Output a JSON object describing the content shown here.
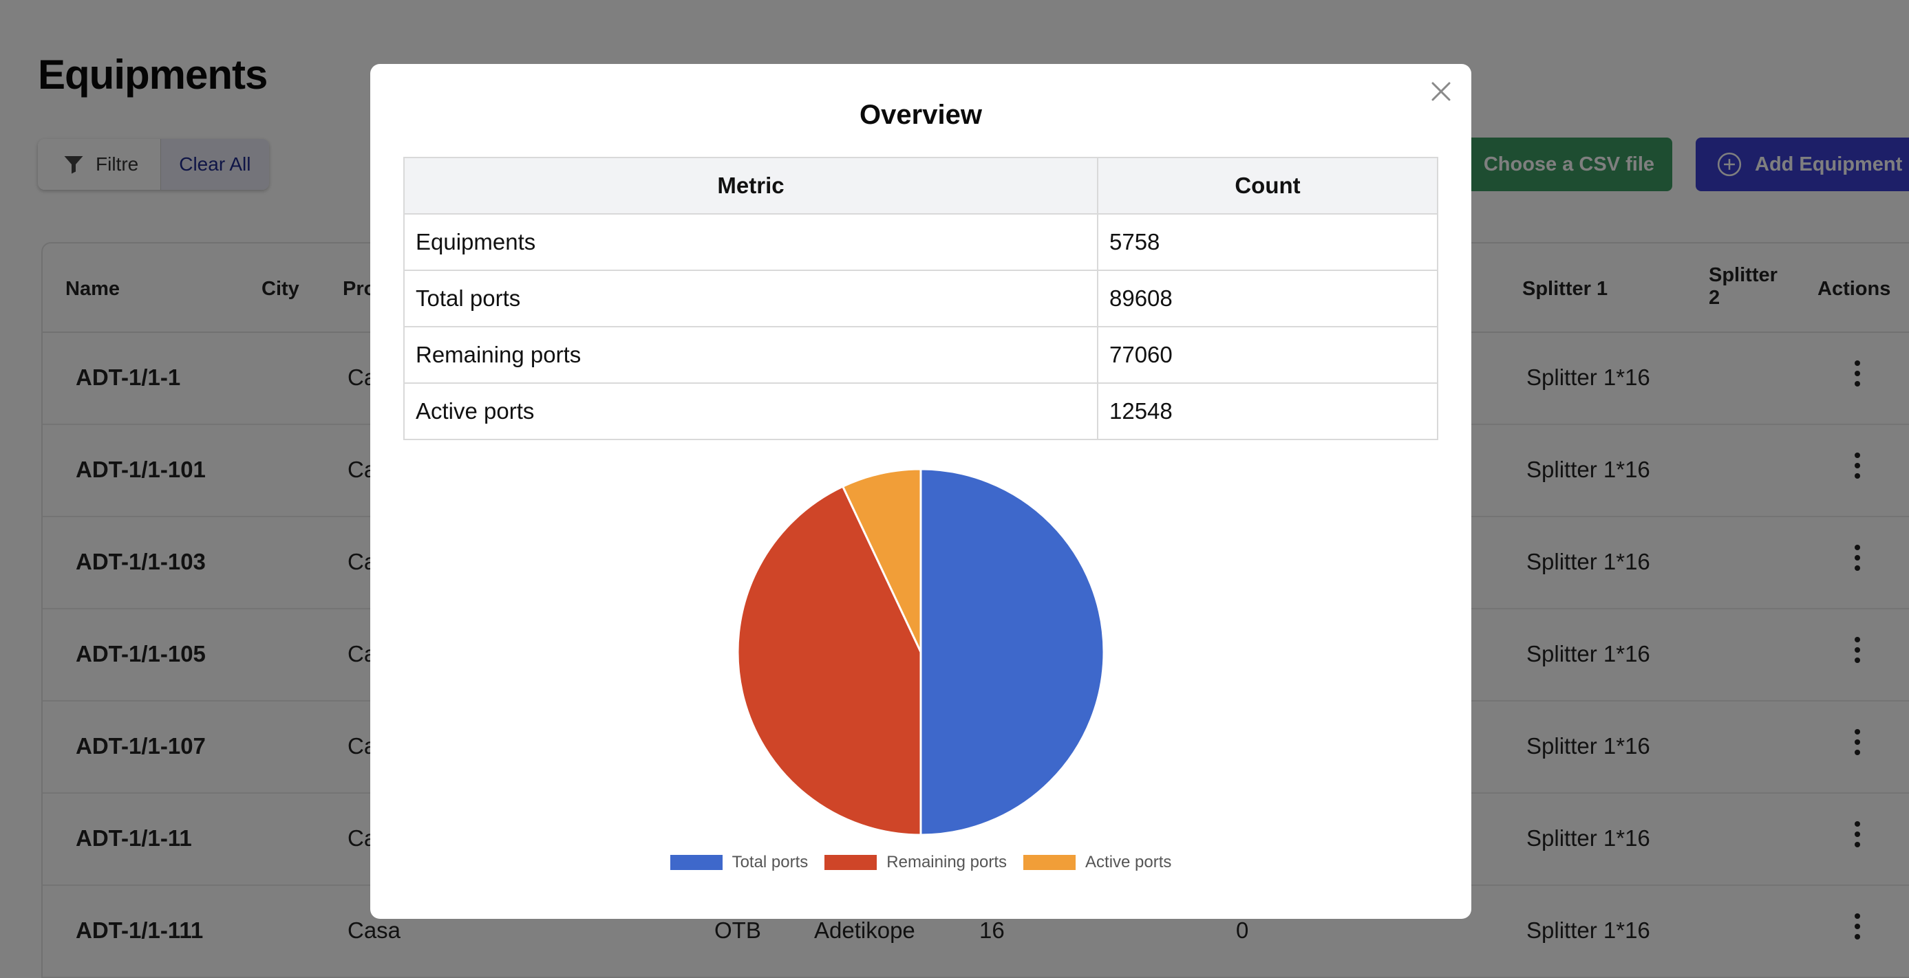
{
  "page": {
    "title": "Equipments",
    "filter_label": "Filtre",
    "clear_label": "Clear All",
    "csv_label": "Choose a CSV file",
    "add_label": "Add Equipment"
  },
  "table": {
    "headers": {
      "name": "Name",
      "city": "City",
      "pro": "Pro",
      "splitter1": "Splitter 1",
      "splitter2a": "Splitter",
      "splitter2b": "2",
      "actions": "Actions"
    },
    "rows": [
      {
        "name": "ADT-1/1-1",
        "city": "Ca",
        "splitter": "Splitter 1*16"
      },
      {
        "name": "ADT-1/1-101",
        "city": "Ca",
        "splitter": "Splitter 1*16"
      },
      {
        "name": "ADT-1/1-103",
        "city": "Ca",
        "splitter": "Splitter 1*16"
      },
      {
        "name": "ADT-1/1-105",
        "city": "Ca",
        "splitter": "Splitter 1*16"
      },
      {
        "name": "ADT-1/1-107",
        "city": "Ca",
        "splitter": "Splitter 1*16"
      },
      {
        "name": "ADT-1/1-11",
        "city": "Ca",
        "splitter": "Splitter 1*16"
      },
      {
        "name": "ADT-1/1-111",
        "city": "Casa",
        "type": "OTB",
        "location": "Adetikope",
        "ports": "16",
        "active": "0",
        "splitter": "Splitter 1*16"
      }
    ]
  },
  "modal": {
    "title": "Overview",
    "col_metric": "Metric",
    "col_count": "Count",
    "rows": [
      {
        "metric": "Equipments",
        "count": "5758"
      },
      {
        "metric": "Total ports",
        "count": "89608"
      },
      {
        "metric": "Remaining ports",
        "count": "77060"
      },
      {
        "metric": "Active ports",
        "count": "12548"
      }
    ]
  },
  "chart_data": {
    "type": "pie",
    "title": "",
    "categories": [
      "Total ports",
      "Remaining ports",
      "Active ports"
    ],
    "values": [
      89608,
      77060,
      12548
    ],
    "colors": [
      "#3e68cb",
      "#cf4528",
      "#f19e38"
    ],
    "legend": "bottom"
  }
}
